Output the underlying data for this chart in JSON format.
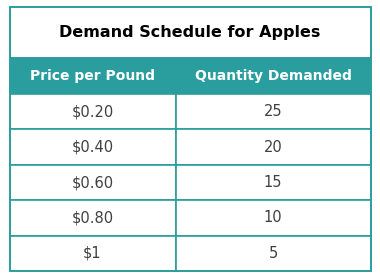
{
  "title": "Demand Schedule for Apples",
  "col_headers": [
    "Price per Pound",
    "Quantity Demanded"
  ],
  "rows": [
    [
      "$0.20",
      "25"
    ],
    [
      "$0.40",
      "20"
    ],
    [
      "$0.60",
      "15"
    ],
    [
      "$0.80",
      "10"
    ],
    [
      "$1",
      "5"
    ]
  ],
  "header_bg": "#2A9D9E",
  "header_fg": "#FFFFFF",
  "title_bg": "#FFFFFF",
  "title_fg": "#000000",
  "row_bg": "#FFFFFF",
  "row_fg": "#404040",
  "border_color": "#2A9D9E",
  "title_fontsize": 11.5,
  "header_fontsize": 10.0,
  "row_fontsize": 10.5,
  "col_split": 0.46,
  "fig_width": 3.8,
  "fig_height": 2.78,
  "dpi": 100
}
